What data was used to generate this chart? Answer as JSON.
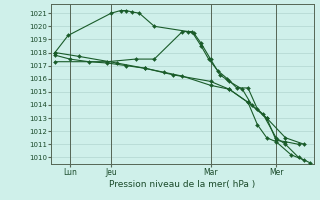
{
  "xlabel": "Pression niveau de la mer( hPa )",
  "bg_color": "#cff0ea",
  "grid_color": "#aacfc8",
  "line_color": "#1a5c2a",
  "vline_color": "#556655",
  "ylim": [
    1009.5,
    1021.7
  ],
  "xlim": [
    0,
    14.0
  ],
  "xtick_labels": [
    "Lun",
    "Jeu",
    "Mar",
    "Mer"
  ],
  "xtick_positions": [
    1.0,
    3.2,
    8.5,
    12.0
  ],
  "ytick_vals": [
    1010,
    1011,
    1012,
    1013,
    1014,
    1015,
    1016,
    1017,
    1018,
    1019,
    1020,
    1021
  ],
  "vlines": [
    1.0,
    3.2,
    8.5,
    12.0
  ],
  "series": [
    {
      "x": [
        0.2,
        0.9,
        3.2,
        3.7,
        4.0,
        4.3,
        4.7,
        5.5,
        7.3,
        7.6,
        8.0,
        8.5,
        9.0,
        9.5,
        10.2,
        10.7,
        11.3,
        12.0,
        12.5,
        13.2,
        13.8
      ],
      "y": [
        1018.0,
        1019.3,
        1021.0,
        1021.2,
        1021.2,
        1021.1,
        1021.0,
        1020.0,
        1019.6,
        1019.5,
        1018.7,
        1017.5,
        1016.3,
        1015.8,
        1015.2,
        1014.0,
        1013.3,
        1011.5,
        1011.0,
        1010.0,
        1009.6
      ]
    },
    {
      "x": [
        0.2,
        3.0,
        4.5,
        5.5,
        7.0,
        7.5,
        8.0,
        8.4,
        8.9,
        9.4,
        9.9,
        10.5,
        11.0,
        11.5,
        12.0,
        12.5,
        13.2
      ],
      "y": [
        1017.3,
        1017.3,
        1017.5,
        1017.5,
        1019.6,
        1019.6,
        1018.5,
        1017.5,
        1016.6,
        1016.0,
        1015.3,
        1015.3,
        1013.7,
        1013.0,
        1011.3,
        1011.2,
        1011.0
      ]
    },
    {
      "x": [
        0.2,
        1.0,
        2.0,
        3.0,
        4.0,
        5.0,
        6.0,
        7.0,
        8.5,
        9.5,
        10.5,
        11.5,
        12.5,
        13.5
      ],
      "y": [
        1017.8,
        1017.5,
        1017.3,
        1017.2,
        1017.0,
        1016.8,
        1016.5,
        1016.2,
        1015.5,
        1015.2,
        1014.2,
        1013.0,
        1011.5,
        1011.0
      ]
    },
    {
      "x": [
        0.2,
        1.5,
        3.5,
        5.0,
        6.5,
        8.5,
        9.5,
        10.5,
        11.0,
        11.5,
        12.0,
        12.8,
        13.5
      ],
      "y": [
        1018.0,
        1017.7,
        1017.2,
        1016.8,
        1016.3,
        1015.8,
        1015.2,
        1014.2,
        1012.5,
        1011.5,
        1011.2,
        1010.2,
        1009.8
      ]
    }
  ]
}
